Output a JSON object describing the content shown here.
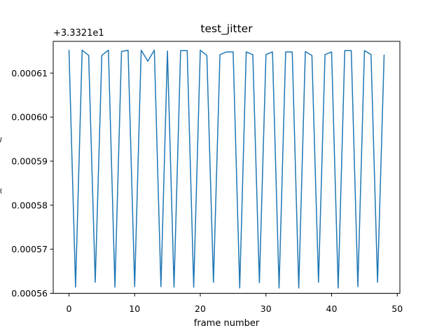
{
  "figure": {
    "background": "#ffffff",
    "spine_color": "#000000",
    "text_color": "#000000"
  },
  "chart_data": {
    "type": "line",
    "title": "test_jitter",
    "xlabel": "frame number",
    "offset_text": "+3.3321e1",
    "y_offset_value": 33.321,
    "line_color": "#1f77b4",
    "grid": false,
    "legend": null,
    "xlim": [
      -2.4,
      50.4
    ],
    "ylim": [
      0.00056,
      0.0006172
    ],
    "xticks": [
      0,
      10,
      20,
      30,
      40,
      50
    ],
    "xticklabels": [
      "0",
      "10",
      "20",
      "30",
      "40",
      "50"
    ],
    "yticks": [
      0.00056,
      0.00057,
      0.00058,
      0.00059,
      0.0006,
      0.00061
    ],
    "yticklabels": [
      "0.00056",
      "0.00057",
      "0.00058",
      "0.00059",
      "0.00060",
      "0.00061"
    ],
    "x": [
      0,
      1,
      2,
      3,
      4,
      5,
      6,
      7,
      8,
      9,
      10,
      11,
      12,
      13,
      14,
      15,
      16,
      17,
      18,
      19,
      20,
      21,
      22,
      23,
      24,
      25,
      26,
      27,
      28,
      29,
      30,
      31,
      32,
      33,
      34,
      35,
      36,
      37,
      38,
      39,
      40,
      41,
      42,
      43,
      44,
      45,
      46,
      47,
      48
    ],
    "values": [
      0.0006152,
      0.0005614,
      0.0006152,
      0.000614,
      0.0005625,
      0.000614,
      0.0006152,
      0.0005614,
      0.0006149,
      0.0006152,
      0.0005615,
      0.0006152,
      0.0006127,
      0.0006152,
      0.0005615,
      0.000615,
      0.0005614,
      0.0006151,
      0.0006151,
      0.0005614,
      0.0006152,
      0.000614,
      0.0005625,
      0.0006142,
      0.0006148,
      0.0006148,
      0.0005612,
      0.0006148,
      0.0006142,
      0.0005624,
      0.0006142,
      0.0006148,
      0.0005612,
      0.0006148,
      0.0006148,
      0.0005612,
      0.0006149,
      0.000614,
      0.0005625,
      0.0006142,
      0.0006148,
      0.0005612,
      0.0006151,
      0.0006151,
      0.0005615,
      0.0006151,
      0.0006142,
      0.0005625,
      0.0006141
    ]
  }
}
